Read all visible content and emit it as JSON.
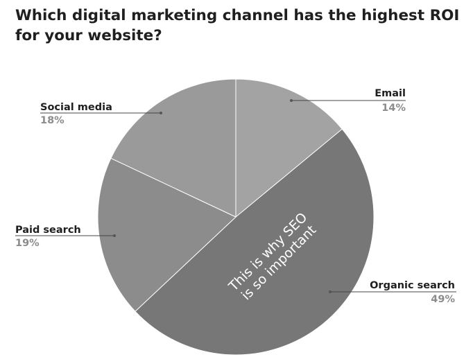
{
  "chart_data": {
    "type": "pie",
    "title": "Which digital marketing channel has the highest ROI for your website?",
    "slices": [
      {
        "label": "Email",
        "value": 14,
        "value_label": "14%",
        "color": "#a3a3a3"
      },
      {
        "label": "Organic search",
        "value": 49,
        "value_label": "49%",
        "color": "#777777"
      },
      {
        "label": "Paid search",
        "value": 19,
        "value_label": "19%",
        "color": "#8c8c8c"
      },
      {
        "label": "Social media",
        "value": 18,
        "value_label": "18%",
        "color": "#9a9a9a"
      }
    ],
    "annotation": [
      "This is why SEO",
      "is so important"
    ]
  }
}
